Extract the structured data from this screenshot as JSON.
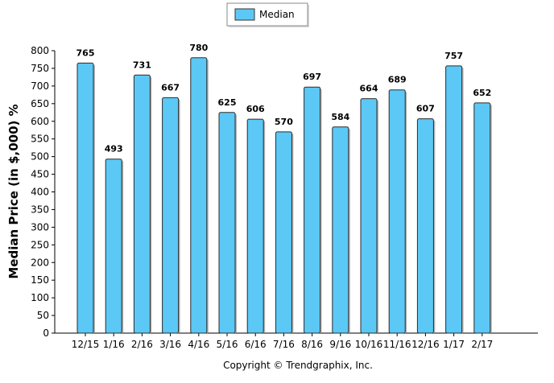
{
  "chart_data": {
    "type": "bar",
    "title": "",
    "xlabel": "",
    "ylabel": "Median Price (in $,000) %",
    "ylim": [
      0,
      800
    ],
    "ytick_step": 50,
    "grid": false,
    "legend_position": "top-center",
    "categories": [
      "12/15",
      "1/16",
      "2/16",
      "3/16",
      "4/16",
      "5/16",
      "6/16",
      "7/16",
      "8/16",
      "9/16",
      "10/16",
      "11/16",
      "12/16",
      "1/17",
      "2/17"
    ],
    "series": [
      {
        "name": "Median",
        "color": "#5cc8f5",
        "values": [
          765,
          493,
          731,
          667,
          780,
          625,
          606,
          570,
          697,
          584,
          664,
          689,
          607,
          757,
          652
        ]
      }
    ],
    "footer": "Copyright © Trendgraphix, Inc."
  }
}
